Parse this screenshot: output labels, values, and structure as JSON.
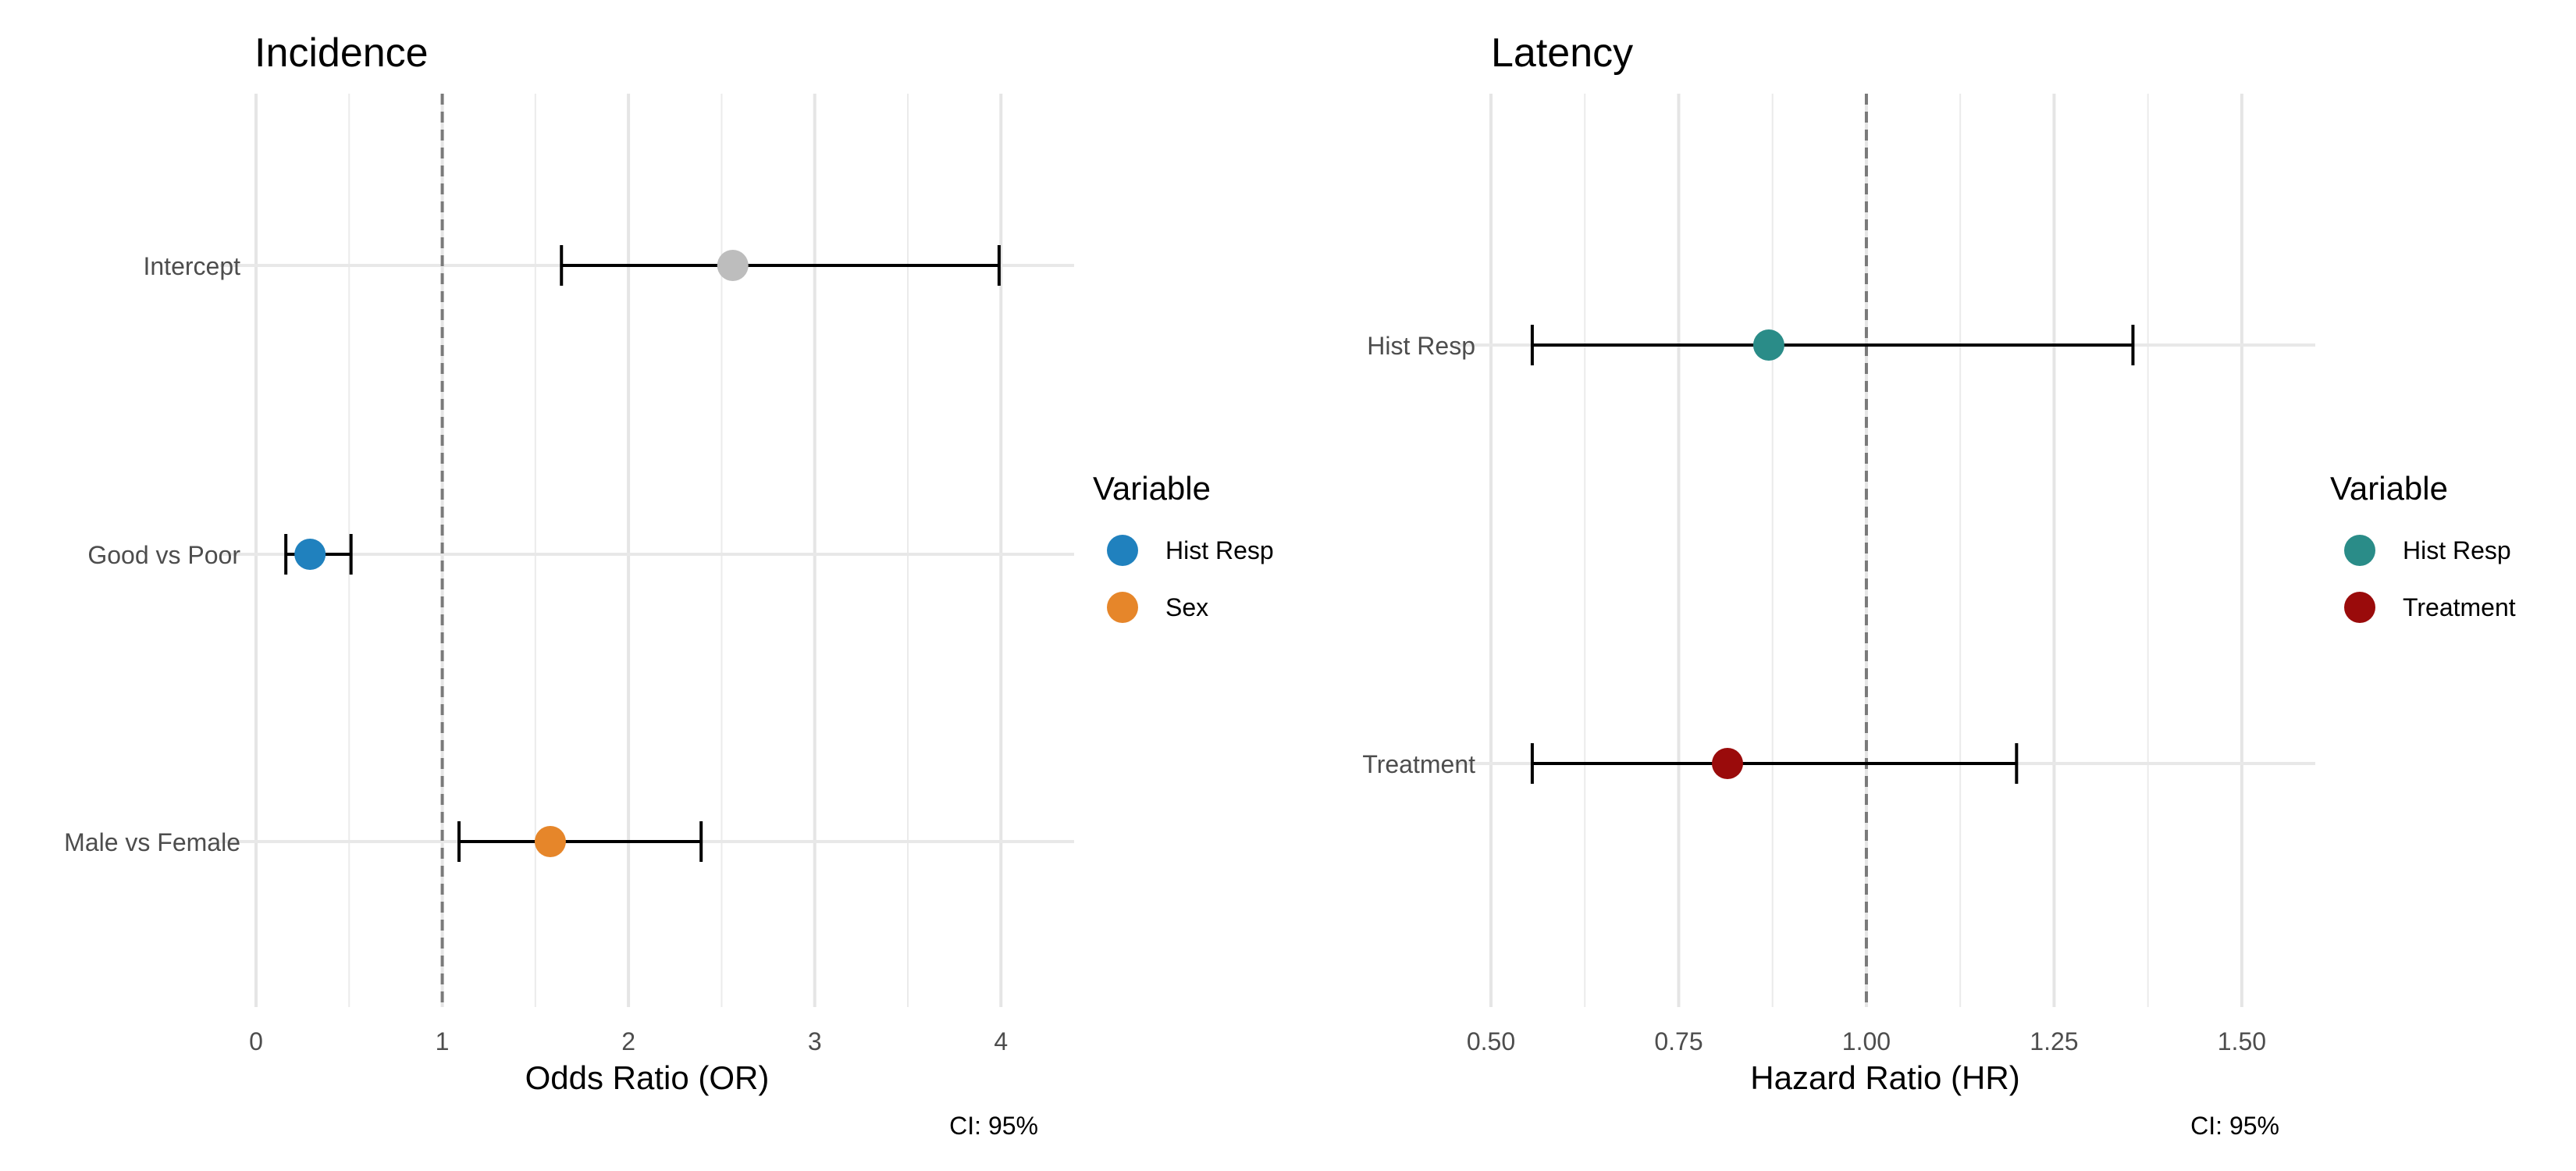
{
  "chart_data": [
    {
      "type": "forest",
      "title": "Incidence",
      "xlabel": "Odds Ratio (OR)",
      "caption": "CI: 95%",
      "xlim": [
        0,
        4.2
      ],
      "xticks": [
        "0",
        "1",
        "2",
        "3",
        "4"
      ],
      "reference_line": 1,
      "categories": [
        "Intercept",
        "Good vs Poor",
        "Male vs Female"
      ],
      "points": [
        {
          "label": "Intercept",
          "estimate": 2.56,
          "lower": 1.64,
          "upper": 3.99,
          "variable": null,
          "color": "#bdbdbd"
        },
        {
          "label": "Good vs Poor",
          "estimate": 0.29,
          "lower": 0.16,
          "upper": 0.51,
          "variable": "Hist Resp",
          "color": "#2081be"
        },
        {
          "label": "Male vs Female",
          "estimate": 1.58,
          "lower": 1.09,
          "upper": 2.39,
          "variable": "Sex",
          "color": "#e6862a"
        }
      ],
      "legend": {
        "title": "Variable",
        "entries": [
          {
            "label": "Hist Resp",
            "color": "#2081be"
          },
          {
            "label": "Sex",
            "color": "#e6862a"
          }
        ]
      }
    },
    {
      "type": "forest",
      "title": "Latency",
      "xlabel": "Hazard Ratio (HR)",
      "caption": "CI: 95%",
      "xlim": [
        0.5,
        1.55
      ],
      "xticks": [
        "0.50",
        "0.75",
        "1.00",
        "1.25",
        "1.50"
      ],
      "reference_line": 1,
      "categories": [
        "Hist Resp",
        "Treatment"
      ],
      "points": [
        {
          "label": "Hist Resp",
          "estimate": 0.87,
          "lower": 0.555,
          "upper": 1.355,
          "variable": "Hist Resp",
          "color": "#2a8c88"
        },
        {
          "label": "Treatment",
          "estimate": 0.815,
          "lower": 0.555,
          "upper": 1.2,
          "variable": "Treatment",
          "color": "#9a0b0b"
        }
      ],
      "legend": {
        "title": "Variable",
        "entries": [
          {
            "label": "Hist Resp",
            "color": "#2a8c88"
          },
          {
            "label": "Treatment",
            "color": "#9a0b0b"
          }
        ]
      }
    }
  ]
}
